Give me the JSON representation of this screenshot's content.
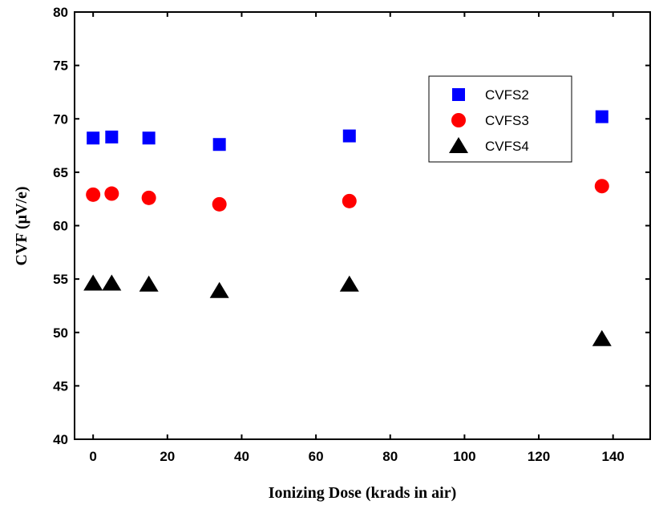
{
  "chart_data": {
    "type": "scatter",
    "title": "",
    "xlabel": "Ionizing Dose (krads in air)",
    "ylabel": "CVF (µV/e)",
    "xlim": [
      -5,
      150
    ],
    "ylim": [
      40,
      80
    ],
    "x_ticks": [
      0,
      20,
      40,
      60,
      80,
      100,
      120,
      140
    ],
    "y_ticks": [
      40,
      45,
      50,
      55,
      60,
      65,
      70,
      75,
      80
    ],
    "grid": false,
    "legend": "top-right",
    "series": [
      {
        "name": "CVFS2",
        "marker": "square",
        "color": "#0000ff",
        "points": [
          [
            0,
            68.2
          ],
          [
            5,
            68.3
          ],
          [
            15,
            68.2
          ],
          [
            34,
            67.6
          ],
          [
            69,
            68.4
          ],
          [
            137,
            70.2
          ]
        ]
      },
      {
        "name": "CVFS3",
        "marker": "circle",
        "color": "#ff0000",
        "points": [
          [
            0,
            62.9
          ],
          [
            5,
            63.0
          ],
          [
            15,
            62.6
          ],
          [
            34,
            62.0
          ],
          [
            69,
            62.3
          ],
          [
            137,
            63.7
          ]
        ]
      },
      {
        "name": "CVFS4",
        "marker": "triangle",
        "color": "#000000",
        "points": [
          [
            0,
            54.6
          ],
          [
            5,
            54.6
          ],
          [
            15,
            54.5
          ],
          [
            34,
            53.9
          ],
          [
            69,
            54.5
          ],
          [
            137,
            49.4
          ]
        ]
      }
    ]
  }
}
